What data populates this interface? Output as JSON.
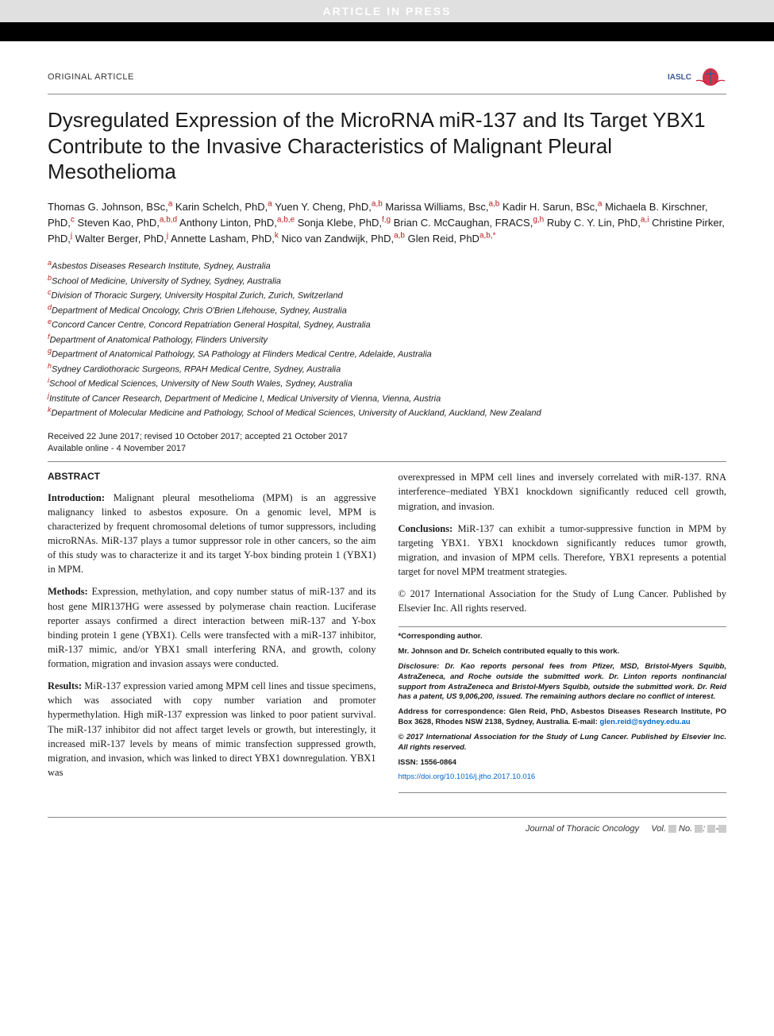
{
  "banner": {
    "text": "ARTICLE IN PRESS"
  },
  "header": {
    "article_type": "ORIGINAL ARTICLE",
    "logo_text": "IASLC"
  },
  "title": "Dysregulated Expression of the MicroRNA miR-137 and Its Target YBX1 Contribute to the Invasive Characteristics of Malignant Pleural Mesothelioma",
  "authors": [
    {
      "name": "Thomas G. Johnson, BSc,",
      "aff": "a"
    },
    {
      "name": "Karin Schelch, PhD,",
      "aff": "a"
    },
    {
      "name": "Yuen Y. Cheng, PhD,",
      "aff": "a,b"
    },
    {
      "name": "Marissa Williams, Bsc,",
      "aff": "a,b"
    },
    {
      "name": "Kadir H. Sarun, BSc,",
      "aff": "a"
    },
    {
      "name": "Michaela B. Kirschner, PhD,",
      "aff": "c"
    },
    {
      "name": "Steven Kao, PhD,",
      "aff": "a,b,d"
    },
    {
      "name": "Anthony Linton, PhD,",
      "aff": "a,b,e"
    },
    {
      "name": "Sonja Klebe, PhD,",
      "aff": "f,g"
    },
    {
      "name": "Brian C. McCaughan, FRACS,",
      "aff": "g,h"
    },
    {
      "name": "Ruby C. Y. Lin, PhD,",
      "aff": "a,i"
    },
    {
      "name": "Christine Pirker, PhD,",
      "aff": "j"
    },
    {
      "name": "Walter Berger, PhD,",
      "aff": "j"
    },
    {
      "name": "Annette Lasham, PhD,",
      "aff": "k"
    },
    {
      "name": "Nico van Zandwijk, PhD,",
      "aff": "a,b"
    },
    {
      "name": "Glen Reid, PhD",
      "aff": "a,b,",
      "star": "*"
    }
  ],
  "affiliations": [
    {
      "label": "a",
      "text": "Asbestos Diseases Research Institute, Sydney, Australia"
    },
    {
      "label": "b",
      "text": "School of Medicine, University of Sydney, Sydney, Australia"
    },
    {
      "label": "c",
      "text": "Division of Thoracic Surgery, University Hospital Zurich, Zurich, Switzerland"
    },
    {
      "label": "d",
      "text": "Department of Medical Oncology, Chris O'Brien Lifehouse, Sydney, Australia"
    },
    {
      "label": "e",
      "text": "Concord Cancer Centre, Concord Repatriation General Hospital, Sydney, Australia"
    },
    {
      "label": "f",
      "text": "Department of Anatomical Pathology, Flinders University"
    },
    {
      "label": "g",
      "text": "Department of Anatomical Pathology, SA Pathology at Flinders Medical Centre, Adelaide, Australia"
    },
    {
      "label": "h",
      "text": "Sydney Cardiothoracic Surgeons, RPAH Medical Centre, Sydney, Australia"
    },
    {
      "label": "i",
      "text": "School of Medical Sciences, University of New South Wales, Sydney, Australia"
    },
    {
      "label": "j",
      "text": "Institute of Cancer Research, Department of Medicine I, Medical University of Vienna, Vienna, Austria"
    },
    {
      "label": "k",
      "text": "Department of Molecular Medicine and Pathology, School of Medical Sciences, University of Auckland, Auckland, New Zealand"
    }
  ],
  "dates": {
    "received": "Received 22 June 2017; revised 10 October 2017; accepted 21 October 2017",
    "online": "Available online - 4 November 2017"
  },
  "abstract": {
    "label": "ABSTRACT",
    "sections": [
      {
        "lead": "Introduction:",
        "text": " Malignant pleural mesothelioma (MPM) is an aggressive malignancy linked to asbestos exposure. On a genomic level, MPM is characterized by frequent chromosomal deletions of tumor suppressors, including microRNAs. MiR-137 plays a tumor suppressor role in other cancers, so the aim of this study was to characterize it and its target Y-box binding protein 1 (YBX1) in MPM."
      },
      {
        "lead": "Methods:",
        "text": " Expression, methylation, and copy number status of miR-137 and its host gene MIR137HG were assessed by polymerase chain reaction. Luciferase reporter assays confirmed a direct interaction between miR-137 and Y-box binding protein 1 gene (YBX1). Cells were transfected with a miR-137 inhibitor, miR-137 mimic, and/or YBX1 small interfering RNA, and growth, colony formation, migration and invasion assays were conducted."
      },
      {
        "lead": "Results:",
        "text": " MiR-137 expression varied among MPM cell lines and tissue specimens, which was associated with copy number variation and promoter hypermethylation. High miR-137 expression was linked to poor patient survival. The miR-137 inhibitor did not affect target levels or growth, but interestingly, it increased miR-137 levels by means of mimic transfection suppressed growth, migration, and invasion, which was linked to direct YBX1 downregulation. YBX1 was"
      }
    ],
    "col2_continuation": "overexpressed in MPM cell lines and inversely correlated with miR-137. RNA interference–mediated YBX1 knockdown significantly reduced cell growth, migration, and invasion.",
    "conclusions": {
      "lead": "Conclusions:",
      "text": " MiR-137 can exhibit a tumor-suppressive function in MPM by targeting YBX1. YBX1 knockdown significantly reduces tumor growth, migration, and invasion of MPM cells. Therefore, YBX1 represents a potential target for novel MPM treatment strategies."
    },
    "copyright": "© 2017 International Association for the Study of Lung Cancer. Published by Elsevier Inc. All rights reserved."
  },
  "corr": {
    "corr_author": "*Corresponding author.",
    "equal": "Mr. Johnson and Dr. Schelch contributed equally to this work.",
    "disclosure": "Disclosure: Dr. Kao reports personal fees from Pfizer, MSD, Bristol-Myers Squibb, AstraZeneca, and Roche outside the submitted work. Dr. Linton reports nonfinancial support from AstraZeneca and Bristol-Myers Squibb, outside the submitted work. Dr. Reid has a patent, US 9,006,200, issued. The remaining authors declare no conflict of interest.",
    "address_label": "Address for correspondence: ",
    "address": "Glen Reid, PhD, Asbestos Diseases Research Institute, PO Box 3628, Rhodes NSW 2138, Sydney, Australia. E-mail: ",
    "email": "glen.reid@sydney.edu.au",
    "copyright2": "© 2017 International Association for the Study of Lung Cancer. Published by Elsevier Inc. All rights reserved.",
    "issn": "ISSN: 1556-0864",
    "doi": "https://doi.org/10.1016/j.jtho.2017.10.016"
  },
  "footer": {
    "journal": "Journal of Thoracic Oncology",
    "vol": "Vol. ",
    "no": " No. ",
    "pages": ": ",
    "dash": "-"
  },
  "colors": {
    "banner_bg": "#e0e0e0",
    "banner_text": "#ffffff",
    "black_bar": "#000000",
    "sup_color": "#b91c1c",
    "link_color": "#0066cc",
    "logo_blue": "#3b5998",
    "logo_red": "#c8102e",
    "rule": "#888888"
  },
  "typography": {
    "title_fontsize": 26,
    "body_fontsize": 12.5,
    "author_fontsize": 13,
    "affiliation_fontsize": 11,
    "corr_fontsize": 9.5,
    "footer_fontsize": 11
  }
}
